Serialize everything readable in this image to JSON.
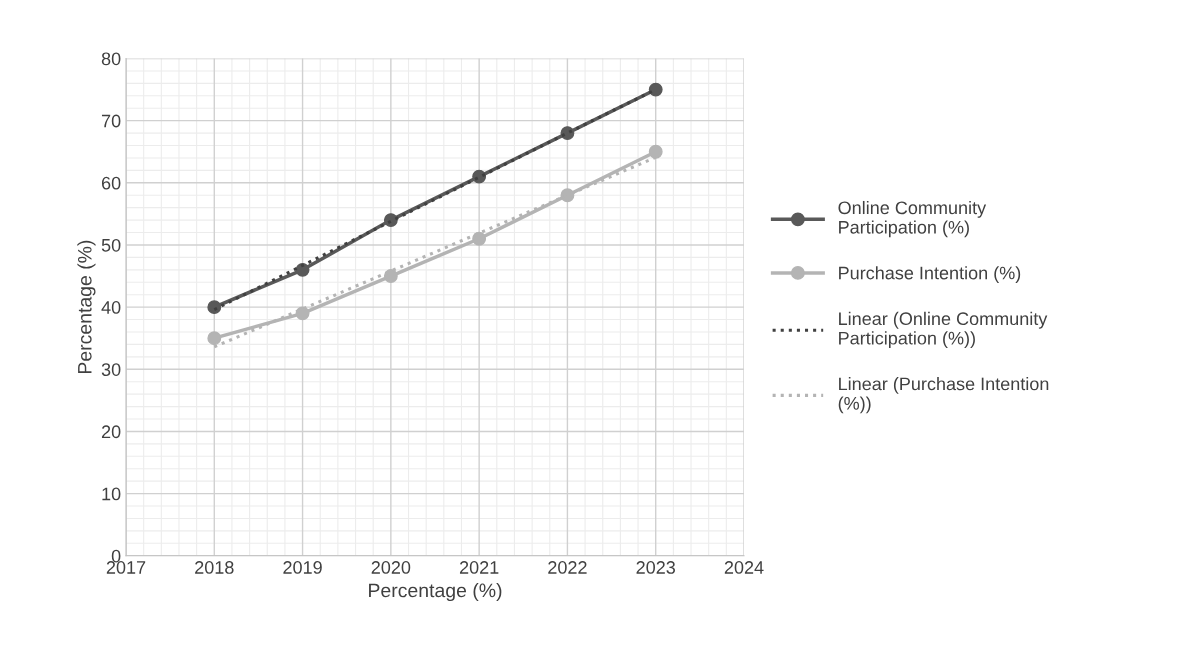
{
  "chart_data": {
    "type": "line",
    "xlabel": "Percentage (%)",
    "ylabel": "Percentage (%)",
    "x": [
      2018,
      2019,
      2020,
      2021,
      2022,
      2023
    ],
    "series": [
      {
        "name": "Online Community Participation (%)",
        "color": "#595959",
        "values": [
          40,
          46,
          54,
          61,
          68,
          75
        ],
        "marker": "circle",
        "line_style": "solid"
      },
      {
        "name": "Purchase Intention (%)",
        "color": "#b4b4b4",
        "values": [
          35,
          39,
          45,
          51,
          58,
          65
        ],
        "marker": "circle",
        "line_style": "solid"
      },
      {
        "name": "Linear (Online Community Participation (%))",
        "color": "#404040",
        "values": [
          39.6,
          46.7,
          53.8,
          60.9,
          68.0,
          75.0
        ],
        "marker": "none",
        "line_style": "dotted"
      },
      {
        "name": "Linear (Purchase Intention (%))",
        "color": "#b4b4b4",
        "values": [
          33.6,
          39.7,
          45.8,
          51.9,
          58.0,
          64.1
        ],
        "marker": "none",
        "line_style": "dotted"
      }
    ],
    "xlim": [
      2017,
      2024
    ],
    "xticks": [
      2017,
      2018,
      2019,
      2020,
      2021,
      2022,
      2023,
      2024
    ],
    "ylim": [
      0,
      80
    ],
    "yticks": [
      0,
      10,
      20,
      30,
      40,
      50,
      60,
      70,
      80
    ],
    "grid": true,
    "legend": "right"
  }
}
